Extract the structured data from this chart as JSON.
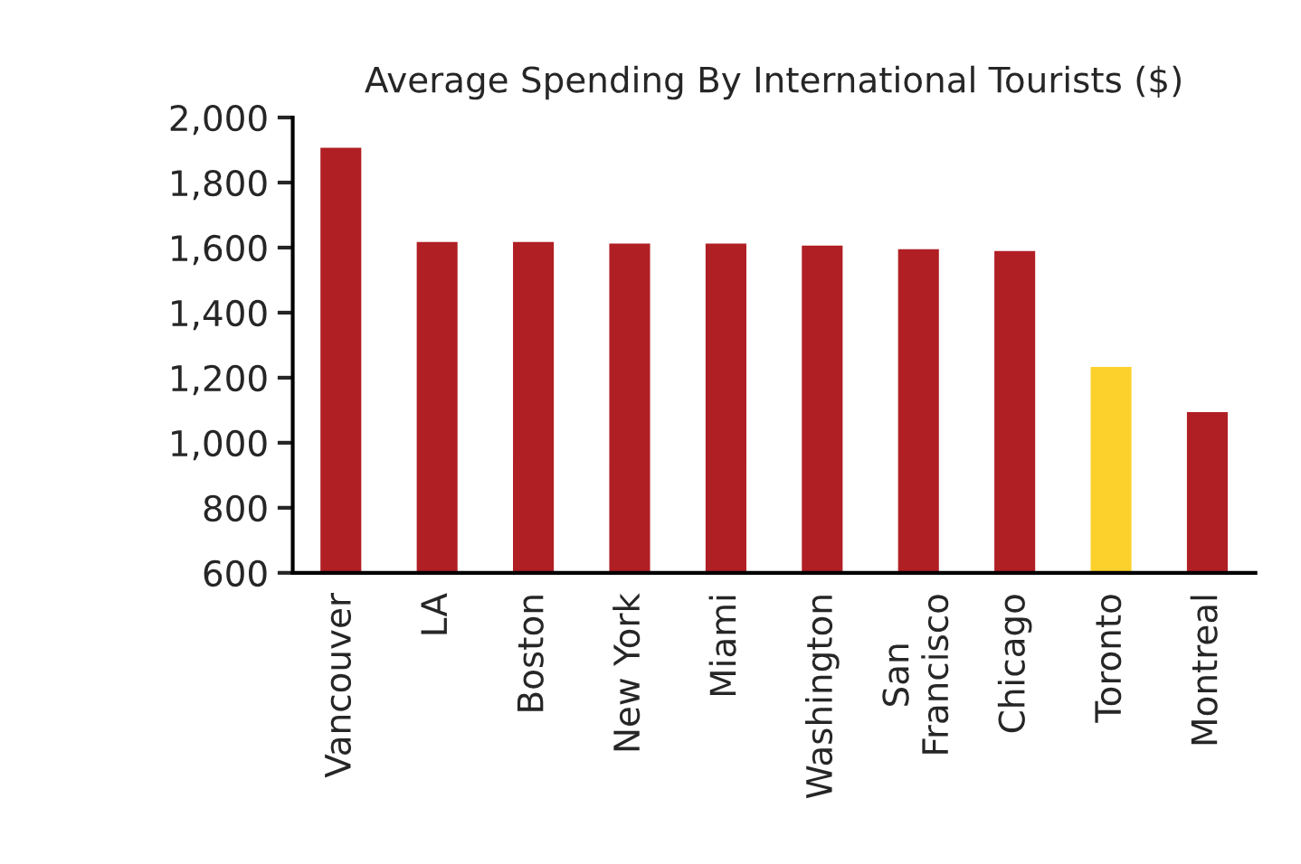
{
  "chart_data": {
    "type": "bar",
    "title": "Average Spending By International Tourists ($)",
    "categories": [
      "Vancouver",
      "LA",
      "Boston",
      "New York",
      "Miami",
      "Washington",
      "San\nFrancisco",
      "Chicago",
      "Toronto",
      "Montreal"
    ],
    "values": [
      1911,
      1621,
      1621,
      1616,
      1616,
      1610,
      1599,
      1593,
      1237,
      1098
    ],
    "colors": [
      "#b01f24",
      "#b01f24",
      "#b01f24",
      "#b01f24",
      "#b01f24",
      "#b01f24",
      "#b01f24",
      "#b01f24",
      "#fdd12b",
      "#b01f24"
    ],
    "ylim": [
      600,
      2000
    ],
    "yticks": [
      {
        "value": 600,
        "label": "600"
      },
      {
        "value": 800,
        "label": "800"
      },
      {
        "value": 1000,
        "label": "1,000"
      },
      {
        "value": 1200,
        "label": "1,200"
      },
      {
        "value": 1400,
        "label": "1,400"
      },
      {
        "value": 1600,
        "label": "1,600"
      },
      {
        "value": 1800,
        "label": "1,800"
      },
      {
        "value": 2000,
        "label": "2,000"
      }
    ],
    "grid": false,
    "legend": false
  }
}
